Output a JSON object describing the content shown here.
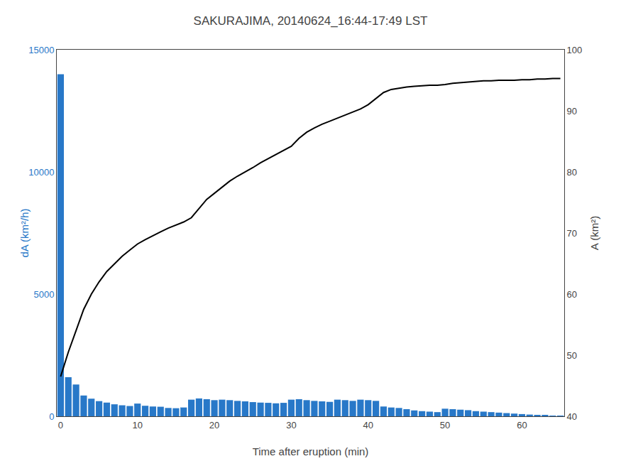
{
  "chart_data": {
    "type": "bar",
    "title": "SAKURAJIMA, 20140624_16:44-17:49 LST",
    "xlabel": "Time after eruption (min)",
    "ylabel": "dA (km²/h)",
    "y2label": "A (km²)",
    "x": [
      0,
      1,
      2,
      3,
      4,
      5,
      6,
      7,
      8,
      9,
      10,
      11,
      12,
      13,
      14,
      15,
      16,
      17,
      18,
      19,
      20,
      21,
      22,
      23,
      24,
      25,
      26,
      27,
      28,
      29,
      30,
      31,
      32,
      33,
      34,
      35,
      36,
      37,
      38,
      39,
      40,
      41,
      42,
      43,
      44,
      45,
      46,
      47,
      48,
      49,
      50,
      51,
      52,
      53,
      54,
      55,
      56,
      57,
      58,
      59,
      60,
      61,
      62,
      63,
      64,
      65
    ],
    "series": [
      {
        "type": "bar",
        "color": "#2878C8",
        "values": [
          14000,
          1600,
          1300,
          850,
          720,
          620,
          560,
          490,
          450,
          420,
          520,
          430,
          400,
          390,
          340,
          330,
          360,
          680,
          730,
          700,
          660,
          680,
          660,
          630,
          610,
          580,
          560,
          550,
          530,
          550,
          680,
          700,
          660,
          630,
          610,
          590,
          680,
          660,
          630,
          680,
          660,
          630,
          400,
          360,
          340,
          290,
          240,
          210,
          190,
          170,
          310,
          290,
          270,
          250,
          210,
          190,
          170,
          150,
          130,
          110,
          90,
          70,
          55,
          40,
          20,
          10
        ]
      },
      {
        "type": "line",
        "color": "#000000",
        "axis": "y2",
        "values": [
          46.5,
          50.5,
          54.0,
          57.5,
          60.0,
          62.0,
          63.7,
          65.0,
          66.2,
          67.2,
          68.2,
          68.9,
          69.6,
          70.2,
          70.8,
          71.3,
          71.8,
          72.5,
          74.0,
          75.5,
          76.5,
          77.5,
          78.5,
          79.3,
          80.0,
          80.7,
          81.5,
          82.2,
          82.8,
          83.5,
          84.2,
          85.5,
          86.5,
          87.2,
          87.8,
          88.3,
          88.8,
          89.3,
          89.8,
          90.3,
          91.0,
          92.0,
          93.0,
          93.5,
          93.7,
          93.9,
          94.0,
          94.1,
          94.2,
          94.2,
          94.3,
          94.5,
          94.6,
          94.7,
          94.8,
          94.9,
          94.9,
          95.0,
          95.0,
          95.0,
          95.1,
          95.1,
          95.2,
          95.2,
          95.3,
          95.3
        ]
      }
    ],
    "xlim": [
      -0.5,
      65.5
    ],
    "xticks": [
      0,
      10,
      20,
      30,
      40,
      50,
      60
    ],
    "ylim": [
      0,
      15000
    ],
    "yticks": [
      0,
      5000,
      10000,
      15000
    ],
    "y2lim": [
      40,
      100
    ],
    "y2ticks": [
      40,
      50,
      60,
      70,
      80,
      90,
      100
    ],
    "grid": false
  }
}
